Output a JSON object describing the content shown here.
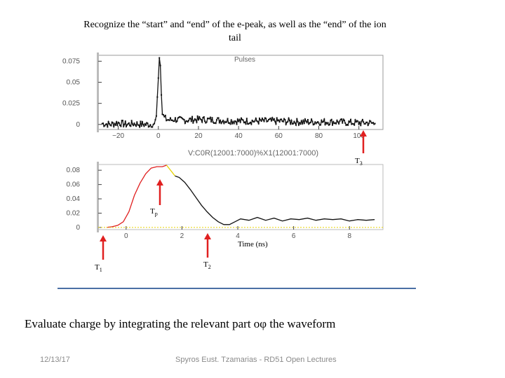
{
  "slide": {
    "title": "Recognize the “start” and “end” of the e-peak, as well as the “end” of the ion tail",
    "bottom_text": "Evaluate charge by integrating the relevant part oφ the waveform",
    "date": "12/13/17",
    "footer": "Spyros Eust. Tzamarias - RD51 Open Lectures"
  },
  "markers": {
    "t3": {
      "letter": "T",
      "sub": "3"
    },
    "tp": {
      "letter": "T",
      "sub": "p"
    },
    "t1": {
      "letter": "T",
      "sub": "1"
    },
    "t2": {
      "letter": "T",
      "sub": "2"
    }
  },
  "chart_data": [
    {
      "type": "line",
      "title": "Pulses",
      "xlabel": "V:C0R(12001:7000)%X1(12001:7000)",
      "ylabel": "",
      "xlim": [
        -30,
        112
      ],
      "ylim": [
        -0.006,
        0.082
      ],
      "x_ticks": [
        "−20",
        "0",
        "20",
        "40",
        "60",
        "80",
        "100"
      ],
      "y_ticks": [
        "0.075",
        "0.05",
        "0.025",
        "0"
      ],
      "series": [
        {
          "x": [
            -28,
            -24,
            -20,
            -16,
            -12,
            -8,
            -4,
            -2,
            -1,
            0,
            0.5,
            1,
            1.5,
            2,
            3,
            4,
            6,
            8,
            12,
            20,
            30,
            40,
            50,
            60,
            70,
            80,
            90,
            95,
            100,
            105,
            108
          ],
          "y": [
            0.001,
            0.0,
            0.002,
            0.0,
            0.001,
            0.0,
            0.0,
            0.001,
            0.01,
            0.055,
            0.079,
            0.07,
            0.035,
            0.012,
            0.008,
            0.006,
            0.005,
            0.006,
            0.005,
            0.006,
            0.005,
            0.004,
            0.004,
            0.004,
            0.003,
            0.003,
            0.003,
            0.002,
            0.002,
            0.002,
            0.001
          ],
          "noise_amplitude": 0.004
        }
      ]
    },
    {
      "type": "line",
      "title": "",
      "xlabel": "Time (ns)",
      "ylabel": "",
      "xlim": [
        -1,
        9.2
      ],
      "ylim": [
        -0.003,
        0.088
      ],
      "x_ticks": [
        "0",
        "2",
        "4",
        "6",
        "8"
      ],
      "y_ticks": [
        "0.08",
        "0.06",
        "0.04",
        "0.02",
        "0"
      ],
      "series": [
        {
          "name": "rise",
          "color": "#e02020",
          "x": [
            -0.7,
            -0.5,
            -0.3,
            -0.1,
            0.1,
            0.3,
            0.5,
            0.7,
            0.9,
            1.1,
            1.3,
            1.45
          ],
          "y": [
            0.0,
            0.001,
            0.003,
            0.008,
            0.022,
            0.045,
            0.062,
            0.075,
            0.083,
            0.085,
            0.085,
            0.087
          ]
        },
        {
          "name": "peak",
          "color": "#e6d200",
          "x": [
            1.45,
            1.55,
            1.65,
            1.75
          ],
          "y": [
            0.087,
            0.082,
            0.077,
            0.072
          ]
        },
        {
          "name": "fall",
          "color": "#111111",
          "x": [
            1.75,
            1.9,
            2.1,
            2.3,
            2.5,
            2.7,
            2.9,
            3.1,
            3.3,
            3.5,
            3.7,
            3.9,
            4.1,
            4.4,
            4.7,
            5.0,
            5.3,
            5.6,
            5.9,
            6.2,
            6.5,
            6.8,
            7.1,
            7.4,
            7.7,
            8.0,
            8.3,
            8.6,
            8.9
          ],
          "y": [
            0.072,
            0.07,
            0.063,
            0.053,
            0.042,
            0.031,
            0.022,
            0.014,
            0.008,
            0.004,
            0.004,
            0.008,
            0.012,
            0.01,
            0.014,
            0.01,
            0.013,
            0.009,
            0.012,
            0.011,
            0.013,
            0.01,
            0.012,
            0.011,
            0.012,
            0.009,
            0.011,
            0.01,
            0.011
          ]
        },
        {
          "name": "baseline",
          "color": "#e6d200",
          "dashed": true,
          "x": [
            -1,
            9.2
          ],
          "y": [
            0.0,
            0.0
          ]
        }
      ]
    }
  ]
}
